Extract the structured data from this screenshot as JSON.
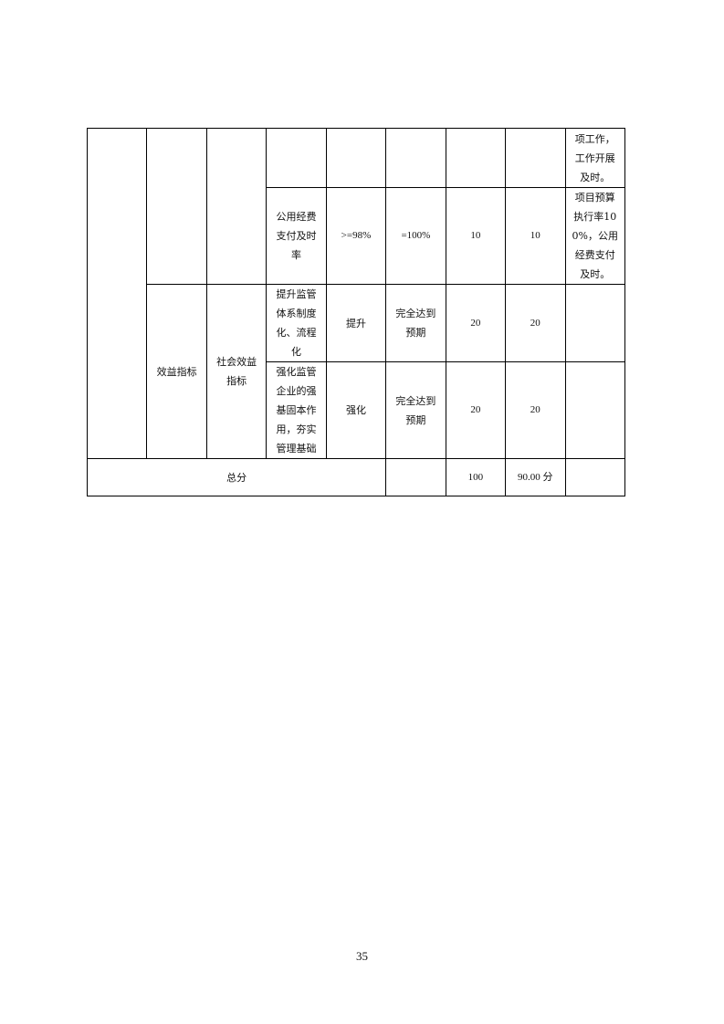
{
  "table": {
    "row1": {
      "c9": "项工作，工作开展及时。"
    },
    "row2": {
      "c4": "公用经费支付及时率",
      "c5": ">=98%",
      "c6": "=100%",
      "c7": "10",
      "c8": "10",
      "c9": "项目预算执行率100%，公用经费支付及时。"
    },
    "row3": {
      "c2": "效益指标",
      "c3": "社会效益指标",
      "c4": "提升监管体系制度化、流程化",
      "c5": "提升",
      "c6": "完全达到预期",
      "c7": "20",
      "c8": "20",
      "c9": ""
    },
    "row4": {
      "c4": "强化监管企业的强基固本作用，夯实管理基础",
      "c5": "强化",
      "c6": "完全达到预期",
      "c7": "20",
      "c8": "20",
      "c9": ""
    },
    "total": {
      "label": "总分",
      "c6": "",
      "c7": "100",
      "c8": "90.00 分",
      "c9": ""
    }
  },
  "page_number": "35"
}
